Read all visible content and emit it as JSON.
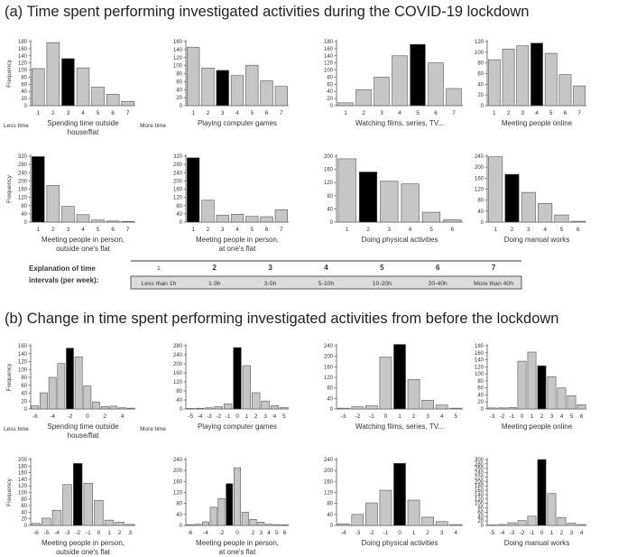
{
  "section_a": {
    "title": "(a) Time spent performing investigated activities during the COVID-19 lockdown"
  },
  "section_b": {
    "title": "(b) Change in time spent performing investigated activities from before the lockdown"
  },
  "legend": {
    "title_lines": [
      "Explanation of time",
      "intervals (per week):"
    ],
    "intervals": [
      "1",
      "2",
      "3",
      "4",
      "5",
      "6",
      "7"
    ],
    "descriptions": [
      "Less than 1h",
      "1-3h",
      "3-5h",
      "5-10h",
      "10-20h",
      "20-40h",
      "More than 40h"
    ]
  },
  "colors": {
    "bar": "#c6c6c6",
    "highlight": "#000000",
    "axis": "#555555"
  },
  "chart_data": [
    {
      "section": "a",
      "type": "bar",
      "title": "",
      "xlabel": [
        "Spending time outside",
        "house/flat"
      ],
      "ylabel": "Frequency",
      "end_labels": [
        "Less time",
        "More time"
      ],
      "categories": [
        "1",
        "2",
        "3",
        "4",
        "5",
        "6",
        "7"
      ],
      "values": [
        104,
        177,
        132,
        106,
        52,
        32,
        12
      ],
      "highlight": 2,
      "yticks": [
        0,
        20,
        40,
        60,
        80,
        100,
        120,
        140,
        160,
        180
      ],
      "ylim": [
        0,
        180
      ]
    },
    {
      "section": "a",
      "type": "bar",
      "title": "",
      "xlabel": [
        "Playing computer games"
      ],
      "ylabel": "",
      "categories": [
        "1",
        "2",
        "3",
        "4",
        "5",
        "6",
        "7"
      ],
      "values": [
        146,
        94,
        88,
        75,
        101,
        62,
        48
      ],
      "highlight": 2,
      "yticks": [
        0,
        20,
        40,
        60,
        80,
        100,
        120,
        140,
        160
      ],
      "ylim": [
        0,
        160
      ]
    },
    {
      "section": "a",
      "type": "bar",
      "title": "",
      "xlabel": [
        "Watching films, series, TV..."
      ],
      "ylabel": "",
      "categories": [
        "1",
        "2",
        "3",
        "4",
        "5",
        "6",
        "7"
      ],
      "values": [
        8,
        45,
        80,
        140,
        172,
        120,
        48
      ],
      "highlight": 4,
      "yticks": [
        0,
        20,
        40,
        60,
        80,
        100,
        120,
        140,
        160,
        180
      ],
      "ylim": [
        0,
        180
      ]
    },
    {
      "section": "a",
      "type": "bar",
      "title": "",
      "xlabel": [
        "Meeting people online"
      ],
      "ylabel": "",
      "categories": [
        "1",
        "2",
        "3",
        "4",
        "5",
        "6",
        "7"
      ],
      "values": [
        86,
        106,
        112,
        117,
        98,
        58,
        37
      ],
      "highlight": 3,
      "yticks": [
        0,
        20,
        40,
        60,
        80,
        100,
        120
      ],
      "ylim": [
        0,
        120
      ]
    },
    {
      "section": "a",
      "type": "bar",
      "title": "",
      "xlabel": [
        "Meeting people in person,",
        "outside one's flat"
      ],
      "ylabel": "Frequency",
      "categories": [
        "1",
        "2",
        "3",
        "4",
        "5",
        "6",
        "7"
      ],
      "values": [
        318,
        178,
        76,
        36,
        10,
        5,
        3
      ],
      "highlight": 0,
      "yticks": [
        0,
        40,
        80,
        120,
        160,
        200,
        240,
        280,
        320
      ],
      "ylim": [
        0,
        320
      ]
    },
    {
      "section": "a",
      "type": "bar",
      "title": "",
      "xlabel": [
        "Meeting people in person,",
        "at one's flat"
      ],
      "ylabel": "",
      "categories": [
        "1",
        "2",
        "3",
        "4",
        "5",
        "6",
        "7"
      ],
      "values": [
        312,
        106,
        34,
        38,
        28,
        26,
        60
      ],
      "highlight": 0,
      "yticks": [
        0,
        40,
        80,
        120,
        160,
        200,
        240,
        280,
        320
      ],
      "ylim": [
        0,
        320
      ]
    },
    {
      "section": "a",
      "type": "bar",
      "title": "",
      "xlabel": [
        "Doing physical activities"
      ],
      "ylabel": "",
      "categories": [
        "1",
        "2",
        "3",
        "4",
        "5",
        "6"
      ],
      "values": [
        192,
        152,
        124,
        116,
        30,
        7
      ],
      "highlight": 1,
      "yticks": [
        0,
        40,
        80,
        120,
        160,
        200
      ],
      "ylim": [
        0,
        200
      ]
    },
    {
      "section": "a",
      "type": "bar",
      "title": "",
      "xlabel": [
        "Doing manual works"
      ],
      "ylabel": "",
      "categories": [
        "1",
        "2",
        "3",
        "4",
        "5",
        "6"
      ],
      "values": [
        238,
        174,
        108,
        68,
        26,
        3
      ],
      "highlight": 1,
      "yticks": [
        0,
        40,
        80,
        120,
        160,
        200,
        240
      ],
      "ylim": [
        0,
        240
      ]
    },
    {
      "section": "b",
      "type": "bar",
      "title": "",
      "xlabel": [
        "Spending time outside",
        "house/flat"
      ],
      "ylabel": "Frequency",
      "end_labels": [
        "Less time",
        "More time"
      ],
      "categories": [
        "-6",
        "-5",
        "-4",
        "-3",
        "-2",
        "-1",
        "0",
        "1",
        "2",
        "3",
        "4",
        "5"
      ],
      "xtick_labels": [
        "-6",
        "",
        "-4",
        "",
        "-2",
        "",
        "0",
        "",
        "2",
        "",
        "4",
        ""
      ],
      "values": [
        8,
        41,
        80,
        115,
        154,
        132,
        58,
        18,
        6,
        7,
        3,
        2
      ],
      "highlight": 4,
      "yticks": [
        0,
        20,
        40,
        60,
        80,
        100,
        120,
        140,
        160
      ],
      "ylim": [
        0,
        160
      ]
    },
    {
      "section": "b",
      "type": "bar",
      "title": "",
      "xlabel": [
        "Playing computer games"
      ],
      "ylabel": "",
      "categories": [
        "-5",
        "-4",
        "-3",
        "-2",
        "-1",
        "0",
        "1",
        "2",
        "3",
        "4",
        "5"
      ],
      "values": [
        2,
        3,
        5,
        10,
        22,
        272,
        192,
        72,
        35,
        14,
        6
      ],
      "highlight": 5,
      "yticks": [
        0,
        40,
        80,
        120,
        160,
        200,
        240,
        280
      ],
      "ylim": [
        0,
        280
      ]
    },
    {
      "section": "b",
      "type": "bar",
      "title": "",
      "xlabel": [
        "Watching films, series, TV..."
      ],
      "ylabel": "",
      "categories": [
        "-3",
        "-2",
        "-1",
        "0",
        "1",
        "2",
        "3",
        "4",
        "5"
      ],
      "values": [
        3,
        8,
        12,
        197,
        245,
        112,
        33,
        15,
        3
      ],
      "highlight": 4,
      "yticks": [
        0,
        40,
        80,
        120,
        160,
        200,
        240
      ],
      "ylim": [
        0,
        240
      ]
    },
    {
      "section": "b",
      "type": "bar",
      "title": "",
      "xlabel": [
        "Meeting people online"
      ],
      "ylabel": "",
      "categories": [
        "-3",
        "-2",
        "-1",
        "0",
        "1",
        "2",
        "3",
        "4",
        "5",
        "6"
      ],
      "values": [
        3,
        3,
        4,
        136,
        162,
        123,
        92,
        60,
        38,
        12
      ],
      "highlight": 5,
      "yticks": [
        0,
        20,
        40,
        60,
        80,
        100,
        120,
        140,
        160,
        180
      ],
      "ylim": [
        0,
        180
      ]
    },
    {
      "section": "b",
      "type": "bar",
      "title": "",
      "xlabel": [
        "Meeting people in person,",
        "outside one's flat"
      ],
      "ylabel": "Frequency",
      "categories": [
        "-6",
        "-5",
        "-4",
        "-3",
        "-2",
        "-1",
        "0",
        "1",
        "2",
        "3"
      ],
      "values": [
        6,
        22,
        46,
        124,
        188,
        128,
        76,
        16,
        10,
        3
      ],
      "highlight": 4,
      "yticks": [
        0,
        20,
        40,
        60,
        80,
        100,
        120,
        140,
        160,
        180,
        200
      ],
      "ylim": [
        0,
        200
      ]
    },
    {
      "section": "b",
      "type": "bar",
      "title": "",
      "xlabel": [
        "Meeting people in person,",
        "at one's flat"
      ],
      "ylabel": "",
      "categories": [
        "-6",
        "-5",
        "-4",
        "-3",
        "-2",
        "-1",
        "0",
        "1",
        "2",
        "3",
        "4",
        "5",
        "6"
      ],
      "xtick_labels": [
        "-6",
        "",
        "-4",
        "",
        "-2",
        "",
        "0",
        "",
        "2",
        "3",
        "4",
        "5",
        "6"
      ],
      "values": [
        3,
        4,
        13,
        66,
        98,
        152,
        210,
        48,
        22,
        12,
        4,
        3,
        2
      ],
      "highlight": 5,
      "yticks": [
        0,
        40,
        80,
        120,
        160,
        200,
        240
      ],
      "ylim": [
        0,
        240
      ]
    },
    {
      "section": "b",
      "type": "bar",
      "title": "",
      "xlabel": [
        "Doing physical activities"
      ],
      "ylabel": "",
      "categories": [
        "-4",
        "-3",
        "-2",
        "-1",
        "0",
        "1",
        "2",
        "3",
        "4"
      ],
      "values": [
        6,
        40,
        82,
        128,
        226,
        92,
        30,
        14,
        3
      ],
      "highlight": 4,
      "yticks": [
        0,
        40,
        80,
        120,
        160,
        200,
        240
      ],
      "ylim": [
        0,
        240
      ]
    },
    {
      "section": "b",
      "type": "bar",
      "title": "",
      "xlabel": [
        "Doing manual works"
      ],
      "ylabel": "",
      "categories": [
        "-5",
        "-4",
        "-3",
        "-2",
        "-1",
        "0",
        "1",
        "2",
        "3",
        "4"
      ],
      "values": [
        2,
        4,
        12,
        22,
        42,
        300,
        145,
        36,
        10,
        4
      ],
      "highlight": 5,
      "yticks": [
        0,
        20,
        40,
        60,
        80,
        100,
        120,
        140,
        160,
        180,
        200,
        220,
        240,
        260,
        280,
        300
      ],
      "ylim": [
        0,
        300
      ]
    }
  ]
}
